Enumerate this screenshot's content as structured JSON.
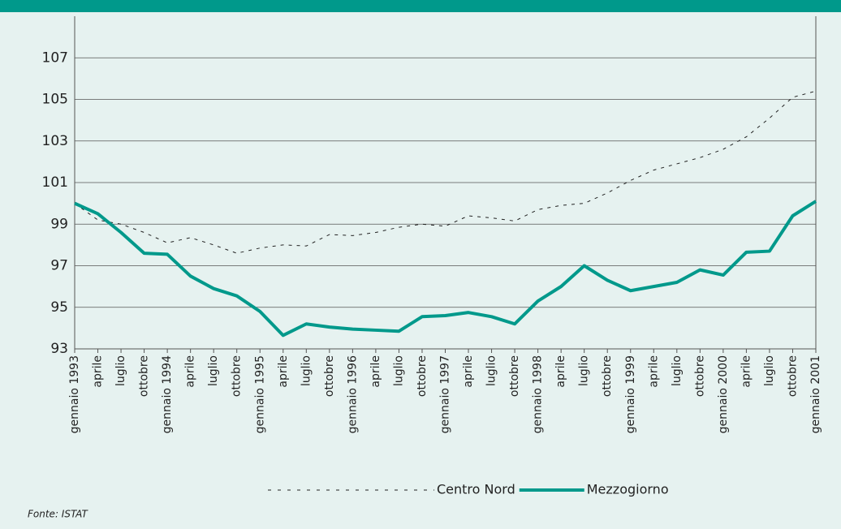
{
  "chart_data": {
    "type": "line",
    "categories": [
      "gennaio 1993",
      "aprile",
      "luglio",
      "ottobre",
      "gennaio 1994",
      "aprile",
      "luglio",
      "ottobre",
      "gennaio 1995",
      "aprile",
      "luglio",
      "ottobre",
      "gennaio 1996",
      "aprile",
      "luglio",
      "ottobre",
      "gennaio 1997",
      "aprile",
      "luglio",
      "ottobre",
      "gennaio 1998",
      "aprile",
      "luglio",
      "ottobre",
      "gennaio 1999",
      "aprile",
      "luglio",
      "ottobre",
      "gennaio 2000",
      "aprile",
      "luglio",
      "ottobre",
      "gennaio 2001"
    ],
    "series": [
      {
        "name": "Centro Nord",
        "color": "#222222",
        "style": "dashed",
        "values": [
          100.0,
          99.2,
          99.0,
          98.6,
          98.1,
          98.35,
          98.0,
          97.6,
          97.85,
          98.0,
          97.95,
          98.5,
          98.45,
          98.6,
          98.85,
          99.0,
          98.9,
          99.4,
          99.3,
          99.15,
          99.7,
          99.9,
          100.0,
          100.5,
          101.1,
          101.6,
          101.9,
          102.2,
          102.6,
          103.2,
          104.1,
          105.1,
          105.4
        ]
      },
      {
        "name": "Mezzogiorno",
        "color": "#00998b",
        "style": "solid",
        "values": [
          100.0,
          99.5,
          98.6,
          97.6,
          97.55,
          96.5,
          95.9,
          95.55,
          94.8,
          93.65,
          94.2,
          94.05,
          93.95,
          93.9,
          93.85,
          94.55,
          94.6,
          94.75,
          94.55,
          94.2,
          95.3,
          96.0,
          97.0,
          96.3,
          95.8,
          96.0,
          96.2,
          96.8,
          96.55,
          97.65,
          97.7,
          99.4,
          100.1
        ]
      }
    ],
    "ylim": [
      93,
      109
    ],
    "yticks": [
      93,
      95,
      97,
      99,
      101,
      103,
      105,
      107
    ],
    "grid": true,
    "legend": "bottom",
    "source": "Fonte: ISTAT"
  }
}
